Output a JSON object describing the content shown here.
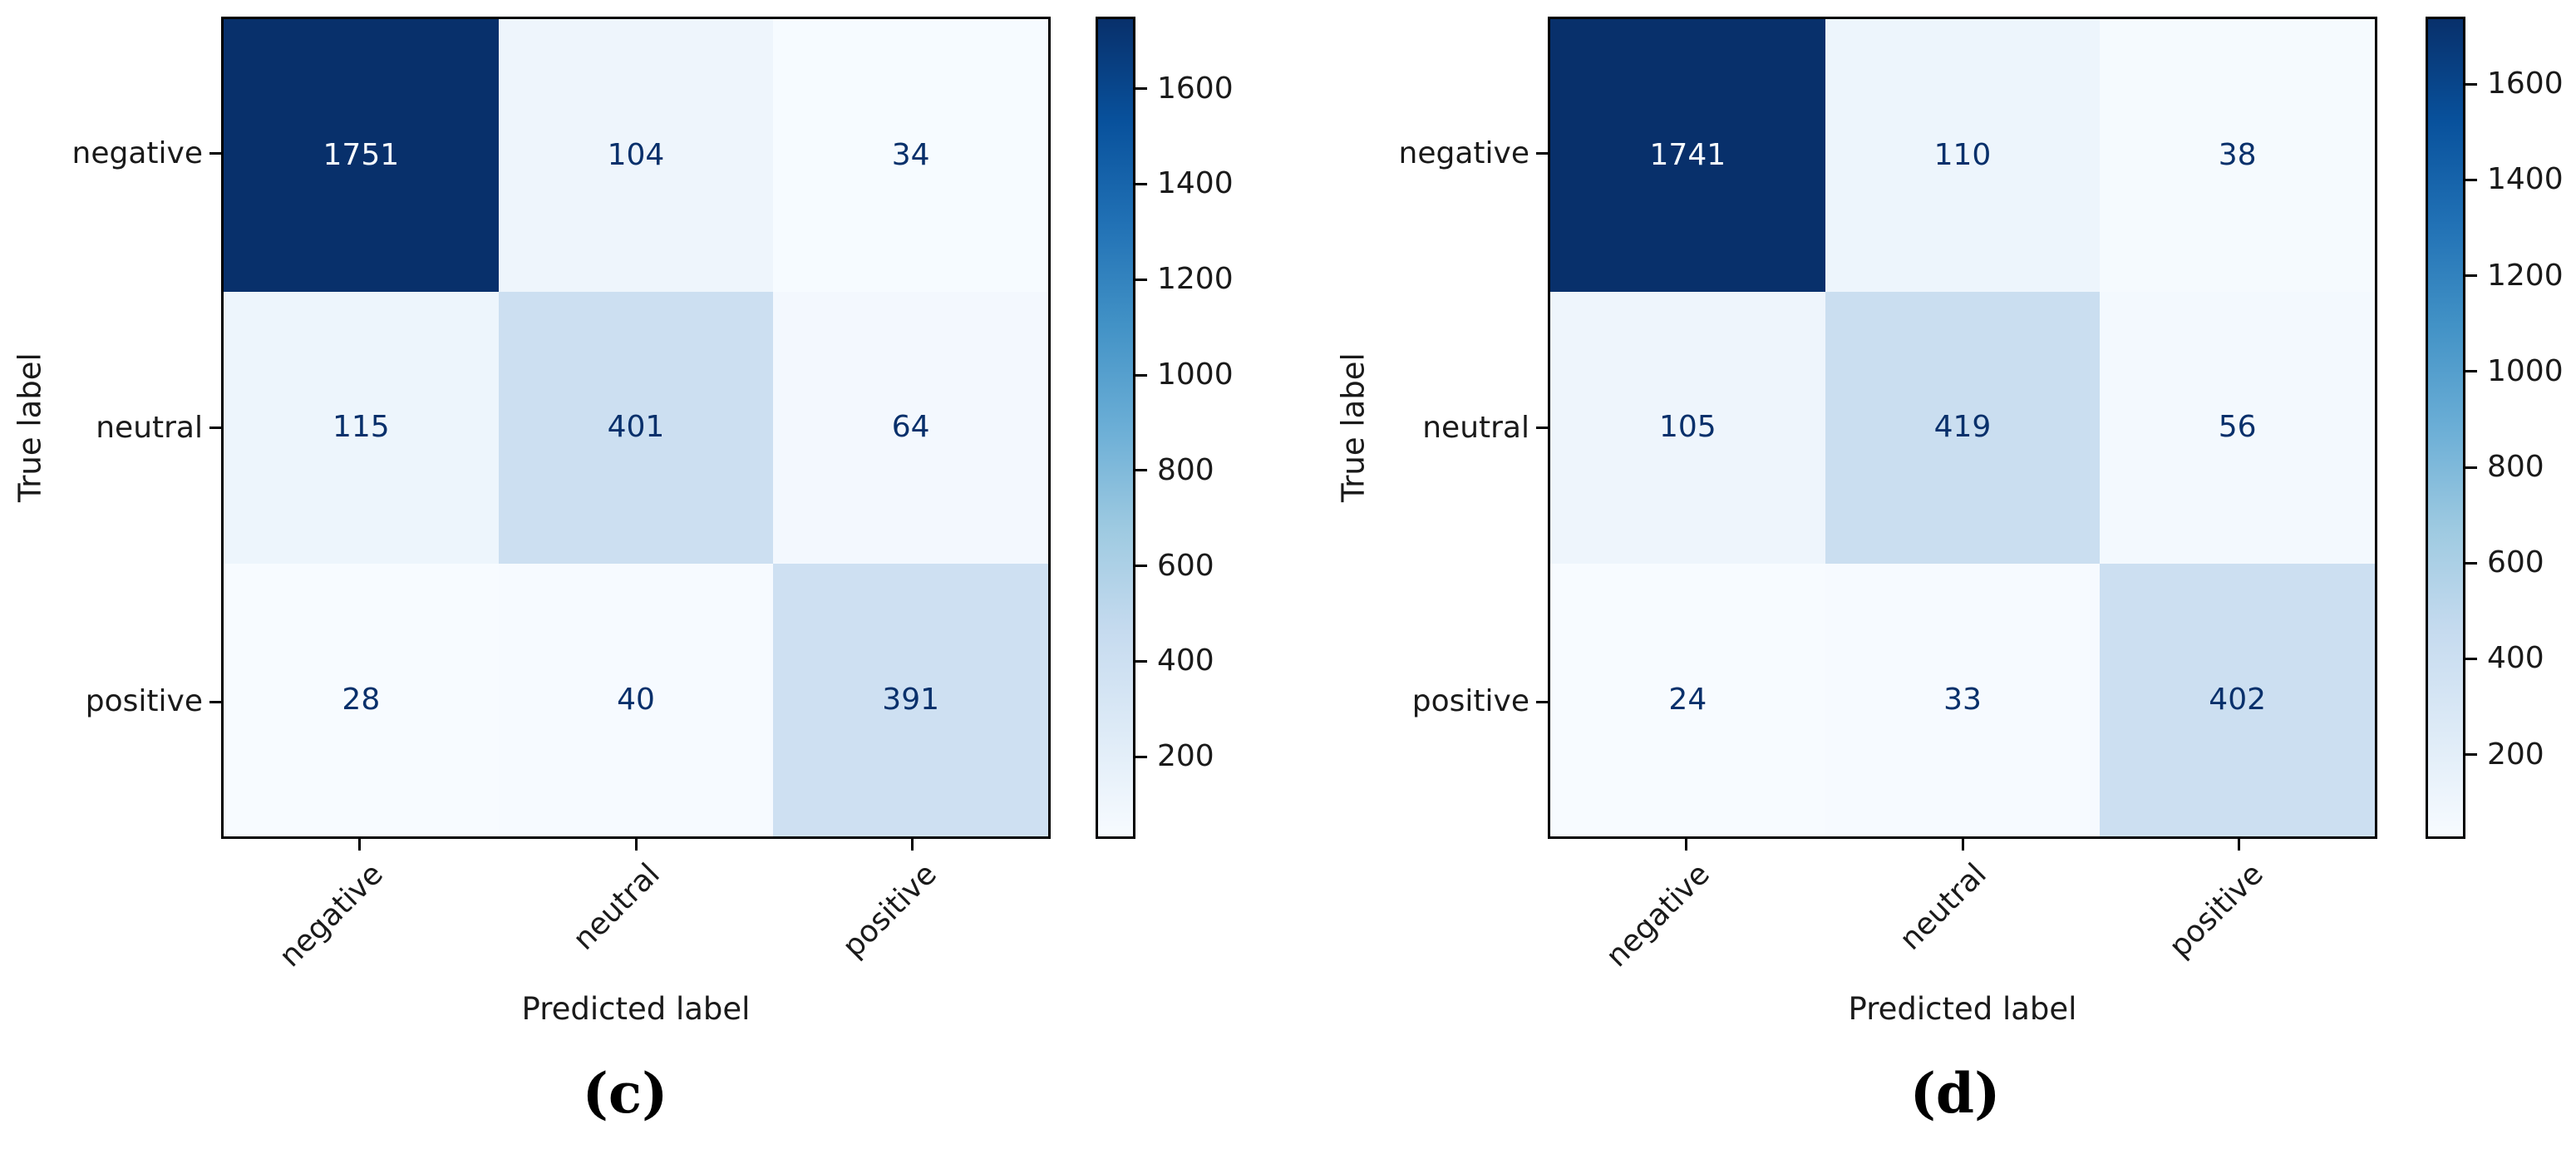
{
  "figure": {
    "background": "#ffffff",
    "colormap": {
      "name": "Blues",
      "anchors": [
        [
          0.0,
          "#f7fbff"
        ],
        [
          0.125,
          "#deebf7"
        ],
        [
          0.25,
          "#c6dbef"
        ],
        [
          0.375,
          "#9ecae1"
        ],
        [
          0.5,
          "#6baed6"
        ],
        [
          0.625,
          "#4292c6"
        ],
        [
          0.75,
          "#2171b5"
        ],
        [
          0.875,
          "#08519c"
        ],
        [
          1.0,
          "#08306b"
        ]
      ],
      "text_color_light": "#f7fbff",
      "text_color_dark": "#08306b"
    }
  },
  "chart_data": [
    {
      "type": "heatmap",
      "caption": "(c)",
      "xlabel": "Predicted label",
      "ylabel": "True label",
      "x_categories": [
        "negative",
        "neutral",
        "positive"
      ],
      "y_categories": [
        "negative",
        "neutral",
        "positive"
      ],
      "matrix": [
        [
          1751,
          104,
          34
        ],
        [
          115,
          401,
          64
        ],
        [
          28,
          40,
          391
        ]
      ],
      "colorbar_ticks": [
        200,
        400,
        600,
        800,
        1000,
        1200,
        1400,
        1600
      ],
      "value_range": [
        28,
        1751
      ],
      "legend_position": "right-colorbar",
      "grid": false
    },
    {
      "type": "heatmap",
      "caption": "(d)",
      "xlabel": "Predicted label",
      "ylabel": "True label",
      "x_categories": [
        "negative",
        "neutral",
        "positive"
      ],
      "y_categories": [
        "negative",
        "neutral",
        "positive"
      ],
      "matrix": [
        [
          1741,
          110,
          38
        ],
        [
          105,
          419,
          56
        ],
        [
          24,
          33,
          402
        ]
      ],
      "colorbar_ticks": [
        200,
        400,
        600,
        800,
        1000,
        1200,
        1400,
        1600
      ],
      "value_range": [
        24,
        1741
      ],
      "legend_position": "right-colorbar",
      "grid": false
    }
  ]
}
